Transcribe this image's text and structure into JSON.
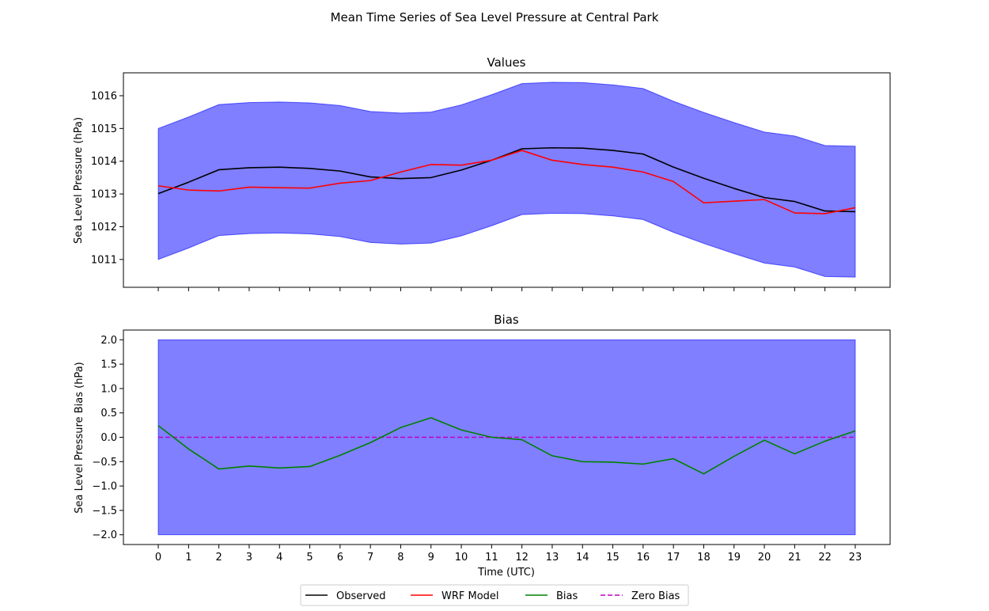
{
  "figure": {
    "title": "Mean Time Series of Sea Level Pressure at Central Park"
  },
  "chart_data": [
    {
      "type": "line",
      "title": "Values",
      "xlabel": "",
      "ylabel": "Sea Level Pressure (hPa)",
      "xlim": [
        -1.15,
        24.15
      ],
      "ylim": [
        1010.15,
        1016.7
      ],
      "x_ticks": [
        0,
        1,
        2,
        3,
        4,
        5,
        6,
        7,
        8,
        9,
        10,
        11,
        12,
        13,
        14,
        15,
        16,
        17,
        18,
        19,
        20,
        21,
        22,
        23
      ],
      "y_ticks": [
        1011,
        1012,
        1013,
        1014,
        1015,
        1016
      ],
      "grid": false,
      "x": [
        0,
        1,
        2,
        3,
        4,
        5,
        6,
        7,
        8,
        9,
        10,
        11,
        12,
        13,
        14,
        15,
        16,
        17,
        18,
        19,
        20,
        21,
        22,
        23
      ],
      "band": {
        "color": "#0000ff",
        "opacity": 0.5,
        "lower": [
          1011.0,
          1011.35,
          1011.73,
          1011.79,
          1011.81,
          1011.78,
          1011.7,
          1011.52,
          1011.47,
          1011.5,
          1011.72,
          1012.03,
          1012.37,
          1012.41,
          1012.4,
          1012.33,
          1012.22,
          1011.83,
          1011.49,
          1011.18,
          1010.89,
          1010.77,
          1010.48,
          1010.46
        ],
        "upper": [
          1015.0,
          1015.35,
          1015.73,
          1015.79,
          1015.81,
          1015.78,
          1015.7,
          1015.52,
          1015.47,
          1015.5,
          1015.72,
          1016.03,
          1016.37,
          1016.41,
          1016.4,
          1016.33,
          1016.22,
          1015.83,
          1015.49,
          1015.18,
          1014.89,
          1014.77,
          1014.48,
          1014.46
        ]
      },
      "series": [
        {
          "name": "Observed",
          "color": "#000000",
          "dash": false,
          "values": [
            1013.01,
            1013.36,
            1013.74,
            1013.8,
            1013.82,
            1013.78,
            1013.7,
            1013.52,
            1013.47,
            1013.5,
            1013.73,
            1014.03,
            1014.38,
            1014.41,
            1014.4,
            1014.33,
            1014.22,
            1013.82,
            1013.48,
            1013.17,
            1012.89,
            1012.77,
            1012.48,
            1012.46
          ]
        },
        {
          "name": "WRF Model",
          "color": "#ff0000",
          "dash": false,
          "values": [
            1013.25,
            1013.12,
            1013.09,
            1013.21,
            1013.19,
            1013.18,
            1013.33,
            1013.41,
            1013.67,
            1013.9,
            1013.88,
            1014.03,
            1014.33,
            1014.03,
            1013.9,
            1013.82,
            1013.67,
            1013.38,
            1012.73,
            1012.78,
            1012.83,
            1012.42,
            1012.4,
            1012.58
          ]
        }
      ]
    },
    {
      "type": "line",
      "title": "Bias",
      "xlabel": "Time (UTC)",
      "ylabel": "Sea Level Pressure Bias (hPa)",
      "xlim": [
        -1.15,
        24.15
      ],
      "ylim": [
        -2.2,
        2.2
      ],
      "x_ticks": [
        0,
        1,
        2,
        3,
        4,
        5,
        6,
        7,
        8,
        9,
        10,
        11,
        12,
        13,
        14,
        15,
        16,
        17,
        18,
        19,
        20,
        21,
        22,
        23
      ],
      "y_ticks": [
        2.0,
        1.5,
        1.0,
        0.5,
        0.0,
        -0.5,
        -1.0,
        -1.5,
        -2.0
      ],
      "y_tick_labels": [
        "2.0",
        "1.5",
        "1.0",
        "0.5",
        "0.0",
        "−0.5",
        "−1.0",
        "−1.5",
        "−2.0"
      ],
      "grid": false,
      "x": [
        0,
        1,
        2,
        3,
        4,
        5,
        6,
        7,
        8,
        9,
        10,
        11,
        12,
        13,
        14,
        15,
        16,
        17,
        18,
        19,
        20,
        21,
        22,
        23
      ],
      "band": {
        "color": "#0000ff",
        "opacity": 0.5,
        "lower": [
          -2,
          -2,
          -2,
          -2,
          -2,
          -2,
          -2,
          -2,
          -2,
          -2,
          -2,
          -2,
          -2,
          -2,
          -2,
          -2,
          -2,
          -2,
          -2,
          -2,
          -2,
          -2,
          -2,
          -2
        ],
        "upper": [
          2,
          2,
          2,
          2,
          2,
          2,
          2,
          2,
          2,
          2,
          2,
          2,
          2,
          2,
          2,
          2,
          2,
          2,
          2,
          2,
          2,
          2,
          2,
          2
        ]
      },
      "series": [
        {
          "name": "Bias",
          "color": "#008000",
          "dash": false,
          "values": [
            0.24,
            -0.24,
            -0.65,
            -0.59,
            -0.63,
            -0.6,
            -0.37,
            -0.11,
            0.2,
            0.4,
            0.15,
            0.0,
            -0.05,
            -0.38,
            -0.5,
            -0.51,
            -0.55,
            -0.44,
            -0.75,
            -0.39,
            -0.06,
            -0.34,
            -0.08,
            0.13
          ]
        },
        {
          "name": "Zero Bias",
          "color": "#bf00bf",
          "dash": true,
          "values": [
            0,
            0,
            0,
            0,
            0,
            0,
            0,
            0,
            0,
            0,
            0,
            0,
            0,
            0,
            0,
            0,
            0,
            0,
            0,
            0,
            0,
            0,
            0,
            0
          ]
        }
      ]
    }
  ],
  "legend": {
    "placement": "bottom-center",
    "entries": [
      {
        "label": "Observed",
        "color": "#000000",
        "dash": false
      },
      {
        "label": "WRF Model",
        "color": "#ff0000",
        "dash": false
      },
      {
        "label": "Bias",
        "color": "#008000",
        "dash": false
      },
      {
        "label": "Zero Bias",
        "color": "#bf00bf",
        "dash": true
      }
    ]
  }
}
